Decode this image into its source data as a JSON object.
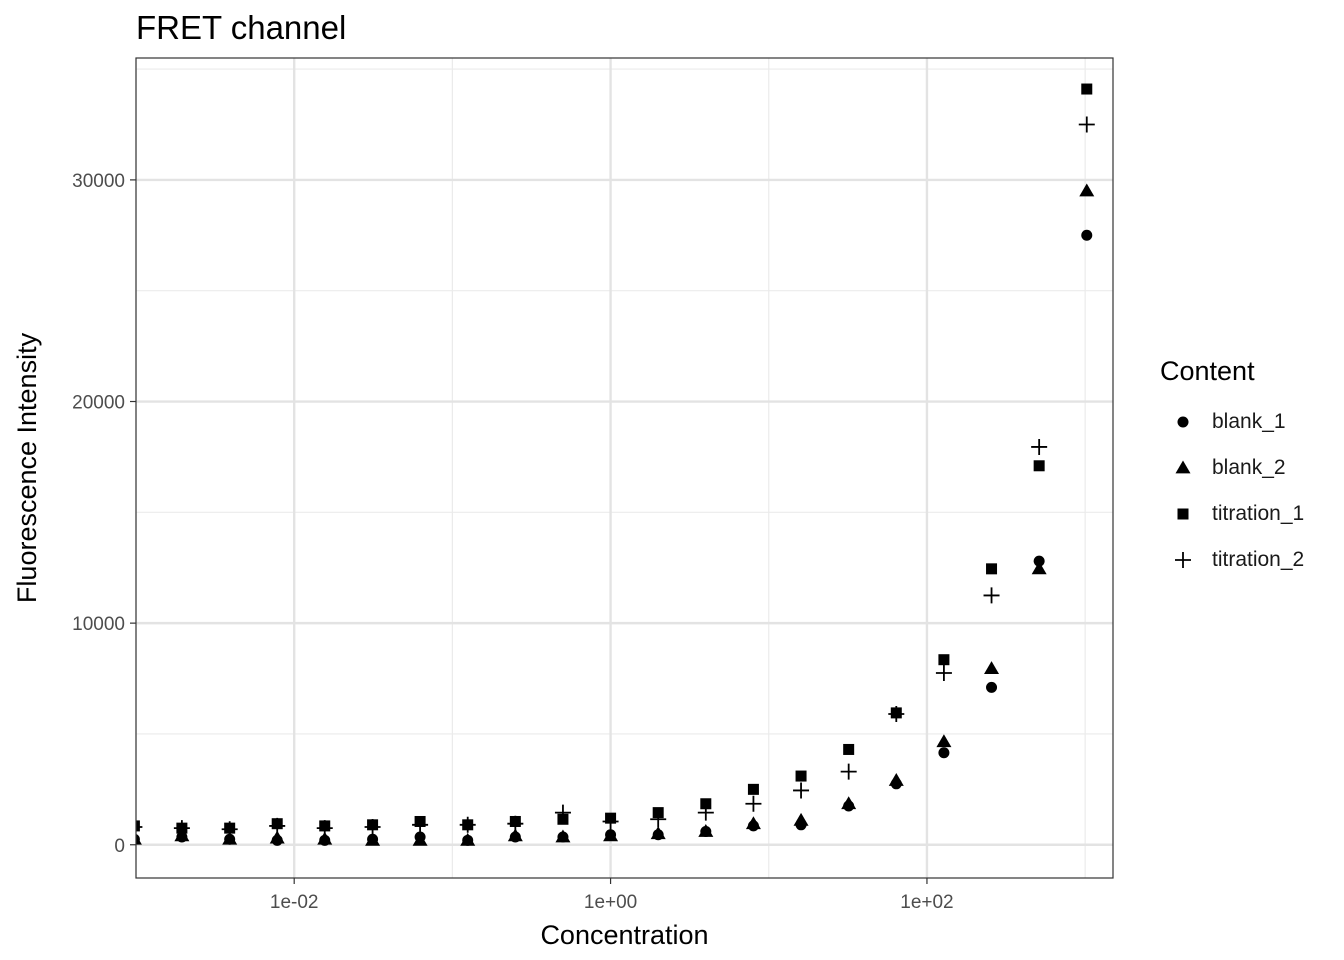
{
  "chart_data": {
    "type": "scatter",
    "title": "FRET channel",
    "xlabel": "Concentration",
    "ylabel": "Fluorescence Intensity",
    "x_scale": "log10",
    "xlim": [
      0.001,
      1500
    ],
    "ylim": [
      -1500,
      35500
    ],
    "x_ticks": [
      0.01,
      1,
      100
    ],
    "x_tick_labels": [
      "1e-02",
      "1e+00",
      "1e+02"
    ],
    "y_ticks": [
      0,
      10000,
      20000,
      30000
    ],
    "y_tick_labels": [
      "0",
      "10000",
      "20000",
      "30000"
    ],
    "grid": true,
    "legend": {
      "title": "Content",
      "position": "right"
    },
    "x": [
      0.000977,
      0.00195,
      0.00391,
      0.00781,
      0.0156,
      0.0313,
      0.0625,
      0.125,
      0.25,
      0.5,
      1,
      2,
      4,
      8,
      16,
      32,
      64,
      128,
      256,
      512,
      1024
    ],
    "series": [
      {
        "name": "blank_1",
        "shape": "circle",
        "values": [
          250,
          350,
          250,
          200,
          200,
          250,
          350,
          200,
          350,
          350,
          450,
          450,
          600,
          850,
          900,
          1750,
          2750,
          4150,
          7100,
          12800,
          27500
        ]
      },
      {
        "name": "blank_2",
        "shape": "triangle",
        "values": [
          250,
          400,
          250,
          300,
          250,
          200,
          200,
          200,
          400,
          350,
          400,
          500,
          600,
          950,
          1100,
          1850,
          2900,
          4650,
          7950,
          12450,
          29500
        ]
      },
      {
        "name": "titration_1",
        "shape": "square",
        "values": [
          850,
          750,
          750,
          950,
          850,
          900,
          1050,
          900,
          1050,
          1150,
          1200,
          1450,
          1850,
          2500,
          3100,
          4300,
          5950,
          8350,
          12450,
          17100,
          34100
        ]
      },
      {
        "name": "titration_2",
        "shape": "plus",
        "values": [
          800,
          750,
          700,
          850,
          750,
          800,
          900,
          900,
          950,
          1450,
          1050,
          1150,
          1450,
          1850,
          2450,
          3300,
          5900,
          7750,
          11250,
          17950,
          32500
        ]
      }
    ]
  }
}
